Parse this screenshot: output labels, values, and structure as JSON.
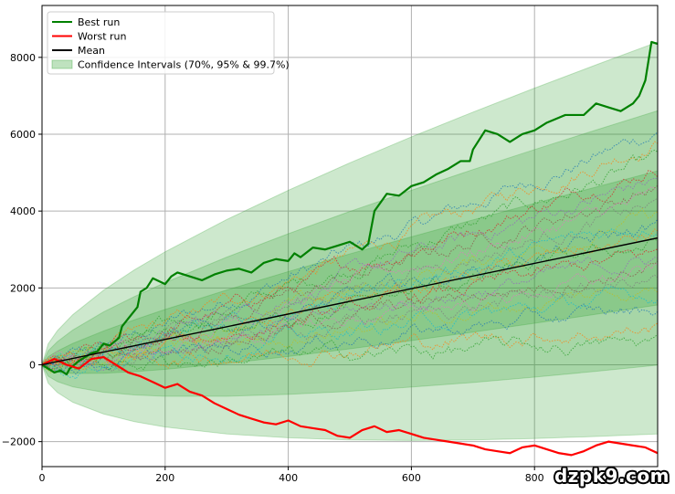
{
  "chart_data": {
    "type": "line",
    "title": "",
    "xlabel": "",
    "ylabel": "",
    "xlim": [
      0,
      1000
    ],
    "ylim": [
      -2650,
      9350
    ],
    "x_ticks": [
      0,
      200,
      400,
      600,
      800
    ],
    "y_ticks": [
      -2000,
      0,
      2000,
      4000,
      6000,
      8000
    ],
    "grid": true,
    "legend_position": "top-left",
    "confidence_bands": {
      "label": "Confidence Intervals (70%, 95% & 99.7%)",
      "color": "#2ca02c",
      "x": [
        0,
        10,
        25,
        50,
        100,
        150,
        200,
        300,
        400,
        500,
        600,
        700,
        800,
        900,
        1000
      ],
      "mean": [
        0,
        33,
        83,
        165,
        330,
        495,
        660,
        990,
        1320,
        1650,
        1980,
        2310,
        2640,
        2970,
        3300
      ],
      "half_widths": [
        {
          "level": "70%",
          "values": [
            0,
            175,
            275,
            390,
            550,
            675,
            780,
            955,
            1105,
            1235,
            1350,
            1460,
            1560,
            1655,
            1745
          ]
        },
        {
          "level": "95%",
          "values": [
            0,
            330,
            520,
            740,
            1045,
            1280,
            1480,
            1810,
            2090,
            2340,
            2560,
            2770,
            2960,
            3140,
            3310
          ]
        },
        {
          "level": "99.7%",
          "values": [
            0,
            510,
            805,
            1140,
            1610,
            1975,
            2280,
            2790,
            3220,
            3605,
            3950,
            4265,
            4560,
            4835,
            5100
          ]
        }
      ]
    },
    "series": [
      {
        "name": "Best run",
        "color": "#008000",
        "x": [
          0,
          20,
          30,
          40,
          45,
          60,
          70,
          80,
          90,
          100,
          110,
          125,
          130,
          140,
          155,
          160,
          170,
          180,
          200,
          210,
          220,
          240,
          260,
          280,
          300,
          320,
          340,
          360,
          380,
          400,
          410,
          420,
          440,
          460,
          480,
          500,
          520,
          530,
          540,
          560,
          580,
          600,
          620,
          640,
          660,
          680,
          695,
          700,
          720,
          740,
          760,
          780,
          800,
          820,
          850,
          880,
          900,
          920,
          940,
          960,
          970,
          980,
          990,
          1000
        ],
        "y": [
          0,
          -200,
          -150,
          -250,
          -100,
          100,
          200,
          300,
          350,
          550,
          500,
          700,
          1000,
          1200,
          1500,
          1900,
          2000,
          2250,
          2100,
          2300,
          2400,
          2300,
          2200,
          2350,
          2450,
          2500,
          2400,
          2650,
          2750,
          2700,
          2900,
          2800,
          3050,
          3000,
          3100,
          3200,
          3000,
          3150,
          4000,
          4450,
          4400,
          4650,
          4750,
          4950,
          5100,
          5300,
          5300,
          5600,
          6100,
          6000,
          5800,
          6000,
          6100,
          6300,
          6500,
          6500,
          6800,
          6700,
          6600,
          6800,
          7000,
          7400,
          8400,
          8350
        ]
      },
      {
        "name": "Worst run",
        "color": "#ff0000",
        "x": [
          0,
          20,
          40,
          60,
          80,
          100,
          120,
          140,
          160,
          180,
          200,
          220,
          240,
          260,
          280,
          300,
          320,
          340,
          360,
          380,
          400,
          420,
          440,
          460,
          480,
          500,
          520,
          540,
          560,
          580,
          600,
          620,
          640,
          660,
          680,
          700,
          720,
          740,
          760,
          780,
          800,
          820,
          840,
          860,
          880,
          900,
          920,
          940,
          960,
          980,
          1000
        ],
        "y": [
          0,
          150,
          0,
          -100,
          150,
          200,
          0,
          -200,
          -300,
          -450,
          -600,
          -500,
          -700,
          -800,
          -1000,
          -1150,
          -1300,
          -1400,
          -1500,
          -1550,
          -1450,
          -1600,
          -1650,
          -1700,
          -1850,
          -1900,
          -1700,
          -1600,
          -1750,
          -1700,
          -1800,
          -1900,
          -1950,
          -2000,
          -2050,
          -2100,
          -2200,
          -2250,
          -2300,
          -2150,
          -2100,
          -2200,
          -2300,
          -2350,
          -2250,
          -2100,
          -2000,
          -2050,
          -2100,
          -2150,
          -2300
        ]
      },
      {
        "name": "Mean",
        "color": "#000000",
        "x": [
          0,
          1000
        ],
        "y": [
          0,
          3300
        ]
      }
    ],
    "background_runs": {
      "count": 23,
      "style": "dotted",
      "colors": [
        "#1f77b4",
        "#ff7f0e",
        "#2ca02c",
        "#d62728",
        "#9467bd",
        "#8c564b",
        "#e377c2",
        "#7f7f7f",
        "#bcbd22",
        "#17becf"
      ],
      "end_values": [
        6300,
        6100,
        5500,
        5400,
        5000,
        4800,
        4500,
        4300,
        4000,
        3900,
        3700,
        3500,
        3300,
        3000,
        2900,
        2700,
        2500,
        2300,
        2100,
        1900,
        1500,
        1000,
        600
      ]
    }
  },
  "watermark": "dzpk9.com"
}
